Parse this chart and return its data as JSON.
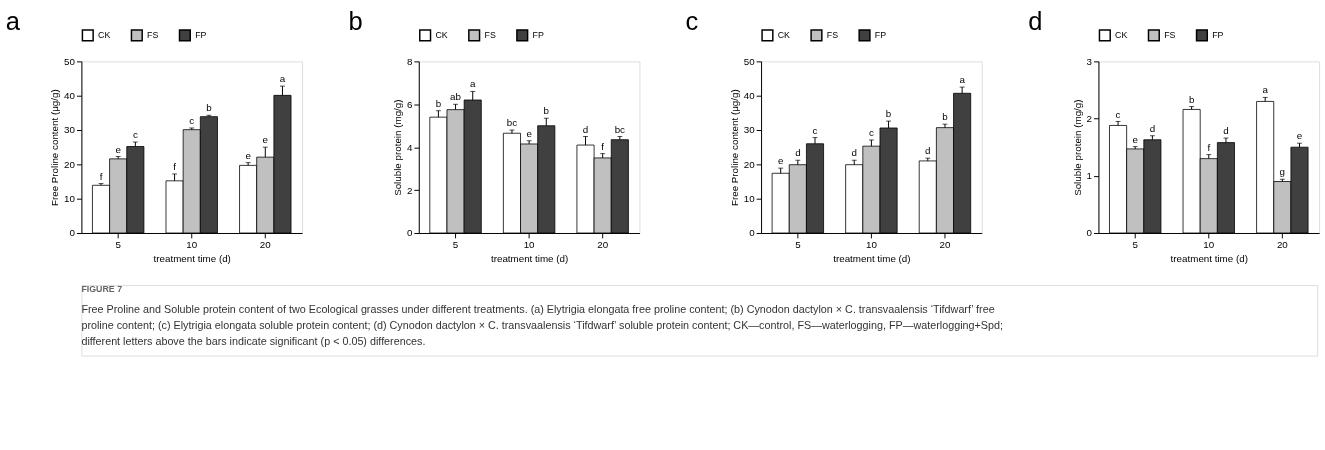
{
  "chart_data": [
    {
      "type": "bar",
      "title": "a",
      "xlabel": "treatment time (d)",
      "ylabel": "Free Proline content (μg/g)",
      "categories": [
        "5",
        "10",
        "20"
      ],
      "ylim": [
        0,
        50
      ],
      "yticks": [
        0,
        10,
        20,
        30,
        40,
        50
      ],
      "grid": false,
      "legend": "top",
      "series": [
        {
          "name": "CK",
          "color": "#ffffff",
          "values": [
            13.9,
            15.2,
            19.7
          ],
          "errors": [
            [
              13.9,
              14.4
            ],
            [
              15.2,
              17.2
            ],
            [
              19.7,
              20.5
            ]
          ],
          "value_labels": [
            "f",
            "f",
            "e"
          ]
        },
        {
          "name": "FS",
          "color": "#c0c0c0",
          "values": [
            21.6,
            30.1,
            22.1
          ],
          "errors": [
            [
              21.6,
              22.3
            ],
            [
              30.1,
              30.6
            ],
            [
              22.1,
              25.0
            ]
          ],
          "value_labels": [
            "e",
            "c",
            "e"
          ]
        },
        {
          "name": "FP",
          "color": "#404040",
          "values": [
            25.2,
            33.9,
            40.1
          ],
          "errors": [
            [
              25.2,
              26.5
            ],
            [
              33.9,
              34.3
            ],
            [
              40.1,
              42.8
            ]
          ],
          "value_labels": [
            "c",
            "b",
            "a"
          ]
        }
      ],
      "annotations": [
        "FIGURE 7",
        "Free Proline and Soluble protein content of two Ecological grasses under different treatments. (a) Elytrigia elongata free proline content; (b) Cynodon dactylon × C. transvaalensis ‘Tifdwarf’ free proline content; (c) Elytrigia elongata soluble protein content; (d) Cynodon dactylon × C. transvaalensis ‘Tifdwarf’ soluble protein content; CK—control, FS—waterlogging, FP—waterlogging+Spd; different letters above the bars indicate significant (p < 0.05) differences."
      ]
    },
    {
      "type": "bar",
      "title": "b",
      "xlabel": "treatment time (d)",
      "ylabel": "Soluble protein (mg/g)",
      "categories": [
        "5",
        "10",
        "20"
      ],
      "ylim": [
        0,
        8
      ],
      "yticks": [
        0,
        2,
        4,
        6,
        8
      ],
      "grid": false,
      "legend": "top",
      "series": [
        {
          "name": "CK",
          "color": "#ffffff",
          "values": [
            5.4,
            4.65,
            4.1
          ],
          "errors": [
            [
              5.4,
              5.7
            ],
            [
              4.65,
              4.8
            ],
            [
              4.1,
              4.5
            ]
          ],
          "value_labels": [
            "b",
            "bc",
            "d"
          ]
        },
        {
          "name": "FS",
          "color": "#c0c0c0",
          "values": [
            5.75,
            4.15,
            3.5
          ],
          "errors": [
            [
              5.75,
              6.0
            ],
            [
              4.15,
              4.3
            ],
            [
              3.5,
              3.7
            ]
          ],
          "value_labels": [
            "ab",
            "e",
            "f"
          ]
        },
        {
          "name": "FP",
          "color": "#404040",
          "values": [
            6.2,
            5.0,
            4.35
          ],
          "errors": [
            [
              6.2,
              6.6
            ],
            [
              5.0,
              5.35
            ],
            [
              4.35,
              4.5
            ]
          ],
          "value_labels": [
            "a",
            "b",
            "bc"
          ]
        }
      ]
    },
    {
      "type": "bar",
      "title": "c",
      "xlabel": "treatment time (d)",
      "ylabel": "Free Proline content (μg/g)",
      "categories": [
        "5",
        "10",
        "20"
      ],
      "ylim": [
        0,
        50
      ],
      "yticks": [
        0,
        10,
        20,
        30,
        40,
        50
      ],
      "grid": false,
      "legend": "top",
      "series": [
        {
          "name": "CK",
          "color": "#ffffff",
          "values": [
            17.4,
            19.9,
            21.0
          ],
          "errors": [
            [
              17.4,
              18.9
            ],
            [
              19.9,
              21.2
            ],
            [
              21.0,
              21.8
            ]
          ],
          "value_labels": [
            "e",
            "d",
            "d"
          ]
        },
        {
          "name": "FS",
          "color": "#c0c0c0",
          "values": [
            19.9,
            25.3,
            30.7
          ],
          "errors": [
            [
              19.9,
              21.2
            ],
            [
              25.3,
              27.1
            ],
            [
              30.7,
              31.7
            ]
          ],
          "value_labels": [
            "d",
            "c",
            "b"
          ]
        },
        {
          "name": "FP",
          "color": "#404040",
          "values": [
            26.0,
            30.6,
            40.7
          ],
          "errors": [
            [
              26.0,
              27.8
            ],
            [
              30.6,
              32.6
            ],
            [
              40.7,
              42.5
            ]
          ],
          "value_labels": [
            "c",
            "b",
            "a"
          ]
        }
      ]
    },
    {
      "type": "bar",
      "title": "d",
      "xlabel": "treatment time (d)",
      "ylabel": "Soluble protein (mg/g)",
      "categories": [
        "5",
        "10",
        "20"
      ],
      "ylim": [
        0,
        3
      ],
      "yticks": [
        0,
        1,
        2,
        3
      ],
      "grid": false,
      "legend": "top",
      "series": [
        {
          "name": "CK",
          "color": "#ffffff",
          "values": [
            1.88,
            2.16,
            2.3
          ],
          "errors": [
            [
              1.88,
              1.95
            ],
            [
              2.16,
              2.21
            ],
            [
              2.3,
              2.37
            ]
          ],
          "value_labels": [
            "c",
            "b",
            "a"
          ]
        },
        {
          "name": "FS",
          "color": "#c0c0c0",
          "values": [
            1.47,
            1.3,
            0.9
          ],
          "errors": [
            [
              1.47,
              1.51
            ],
            [
              1.3,
              1.37
            ],
            [
              0.9,
              0.94
            ]
          ],
          "value_labels": [
            "e",
            "f",
            "g"
          ]
        },
        {
          "name": "FP",
          "color": "#404040",
          "values": [
            1.63,
            1.58,
            1.5
          ],
          "errors": [
            [
              1.63,
              1.7
            ],
            [
              1.58,
              1.66
            ],
            [
              1.5,
              1.57
            ]
          ],
          "value_labels": [
            "d",
            "d",
            "e"
          ]
        }
      ]
    }
  ]
}
